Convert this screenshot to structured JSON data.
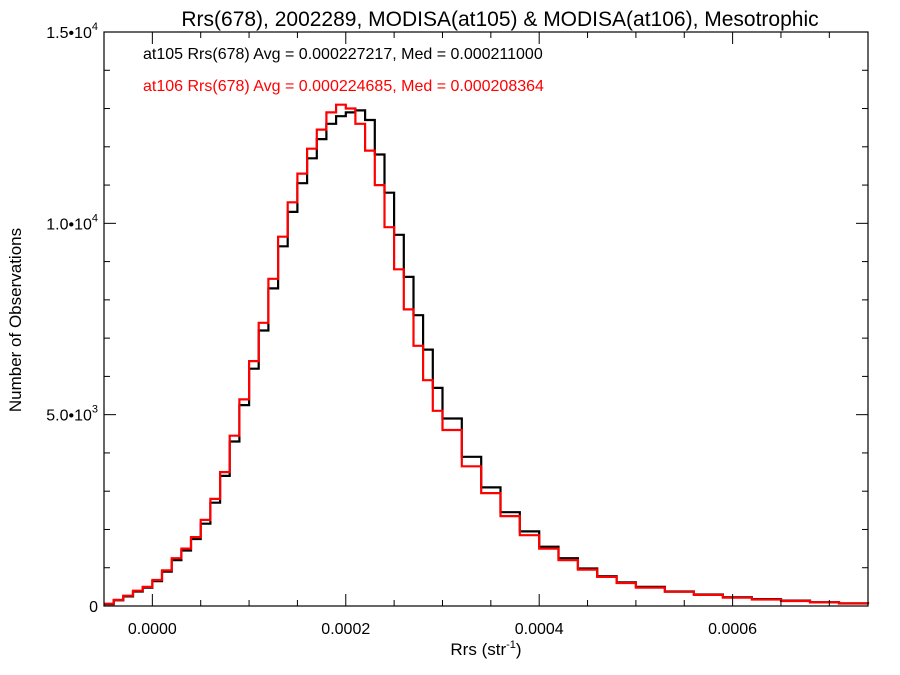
{
  "chart_data": {
    "type": "line",
    "title": "Rrs(678), 2002289, MODISA(at105) & MODISA(at106), Mesotrophic",
    "xlabel": "Rrs (str",
    "xlabel_exp": "-1",
    "xlabel_close": ")",
    "ylabel": "Number of Observations",
    "xlim": [
      -5e-05,
      0.00074
    ],
    "ylim": [
      0,
      15000
    ],
    "grid": false,
    "step": true,
    "x_ticks": [
      {
        "value": 0.0,
        "label": "0.0000"
      },
      {
        "value": 0.0002,
        "label": "0.0002"
      },
      {
        "value": 0.0004,
        "label": "0.0004"
      },
      {
        "value": 0.0006,
        "label": "0.0006"
      }
    ],
    "y_ticks": [
      {
        "value": 0,
        "mant": "0",
        "exp": ""
      },
      {
        "value": 5000,
        "mant": "5.0•10",
        "exp": "3"
      },
      {
        "value": 10000,
        "mant": "1.0•10",
        "exp": "4"
      },
      {
        "value": 15000,
        "mant": "1.5•10",
        "exp": "4"
      }
    ],
    "annotations": [
      {
        "text": "at105 Rrs(678) Avg = 0.000227217, Med = 0.000211000",
        "color": "#000000"
      },
      {
        "text": "at106 Rrs(678) Avg = 0.000224685, Med = 0.000208364",
        "color": "#ff0000"
      }
    ],
    "series": [
      {
        "color": "#000000",
        "x": [
          -5e-05,
          -4e-05,
          -3e-05,
          -2e-05,
          -1e-05,
          0.0,
          1e-05,
          2e-05,
          3e-05,
          4e-05,
          5e-05,
          6e-05,
          7e-05,
          8e-05,
          9e-05,
          0.0001,
          0.00011,
          0.00012,
          0.00013,
          0.00014,
          0.00015,
          0.00016,
          0.00017,
          0.00018,
          0.00019,
          0.0002,
          0.00021,
          0.00022,
          0.00023,
          0.00024,
          0.00025,
          0.00026,
          0.00027,
          0.00028,
          0.00029,
          0.0003,
          0.00032,
          0.00034,
          0.00036,
          0.00038,
          0.0004,
          0.00042,
          0.00044,
          0.00046,
          0.00048,
          0.0005,
          0.00053,
          0.00056,
          0.00059,
          0.00062,
          0.00065,
          0.00068,
          0.00071,
          0.00074
        ],
        "y": [
          50,
          150,
          250,
          380,
          480,
          650,
          900,
          1200,
          1450,
          1750,
          2150,
          2700,
          3400,
          4300,
          5250,
          6200,
          7200,
          8300,
          9400,
          10300,
          11050,
          11700,
          12200,
          12600,
          12800,
          12900,
          12950,
          12700,
          11800,
          10800,
          9700,
          8600,
          7600,
          6700,
          5700,
          4900,
          3900,
          3100,
          2450,
          1950,
          1550,
          1250,
          980,
          780,
          620,
          500,
          380,
          300,
          230,
          180,
          140,
          100,
          70,
          50
        ]
      },
      {
        "color": "#ff0000",
        "x": [
          -5e-05,
          -4e-05,
          -3e-05,
          -2e-05,
          -1e-05,
          0.0,
          1e-05,
          2e-05,
          3e-05,
          4e-05,
          5e-05,
          6e-05,
          7e-05,
          8e-05,
          9e-05,
          0.0001,
          0.00011,
          0.00012,
          0.00013,
          0.00014,
          0.00015,
          0.00016,
          0.00017,
          0.00018,
          0.00019,
          0.0002,
          0.00021,
          0.00022,
          0.00023,
          0.00024,
          0.00025,
          0.00026,
          0.00027,
          0.00028,
          0.00029,
          0.0003,
          0.00032,
          0.00034,
          0.00036,
          0.00038,
          0.0004,
          0.00042,
          0.00044,
          0.00046,
          0.00048,
          0.0005,
          0.00053,
          0.00056,
          0.00059,
          0.00062,
          0.00065,
          0.00068,
          0.00071,
          0.00074
        ],
        "y": [
          60,
          160,
          270,
          400,
          500,
          680,
          930,
          1250,
          1500,
          1800,
          2250,
          2800,
          3500,
          4450,
          5400,
          6400,
          7400,
          8550,
          9650,
          10550,
          11300,
          11950,
          12450,
          12900,
          13100,
          13000,
          12600,
          11900,
          11000,
          9900,
          8800,
          7750,
          6800,
          5900,
          5100,
          4600,
          3650,
          2950,
          2350,
          1850,
          1500,
          1200,
          950,
          760,
          600,
          480,
          370,
          290,
          220,
          170,
          130,
          95,
          65,
          45
        ]
      }
    ]
  }
}
